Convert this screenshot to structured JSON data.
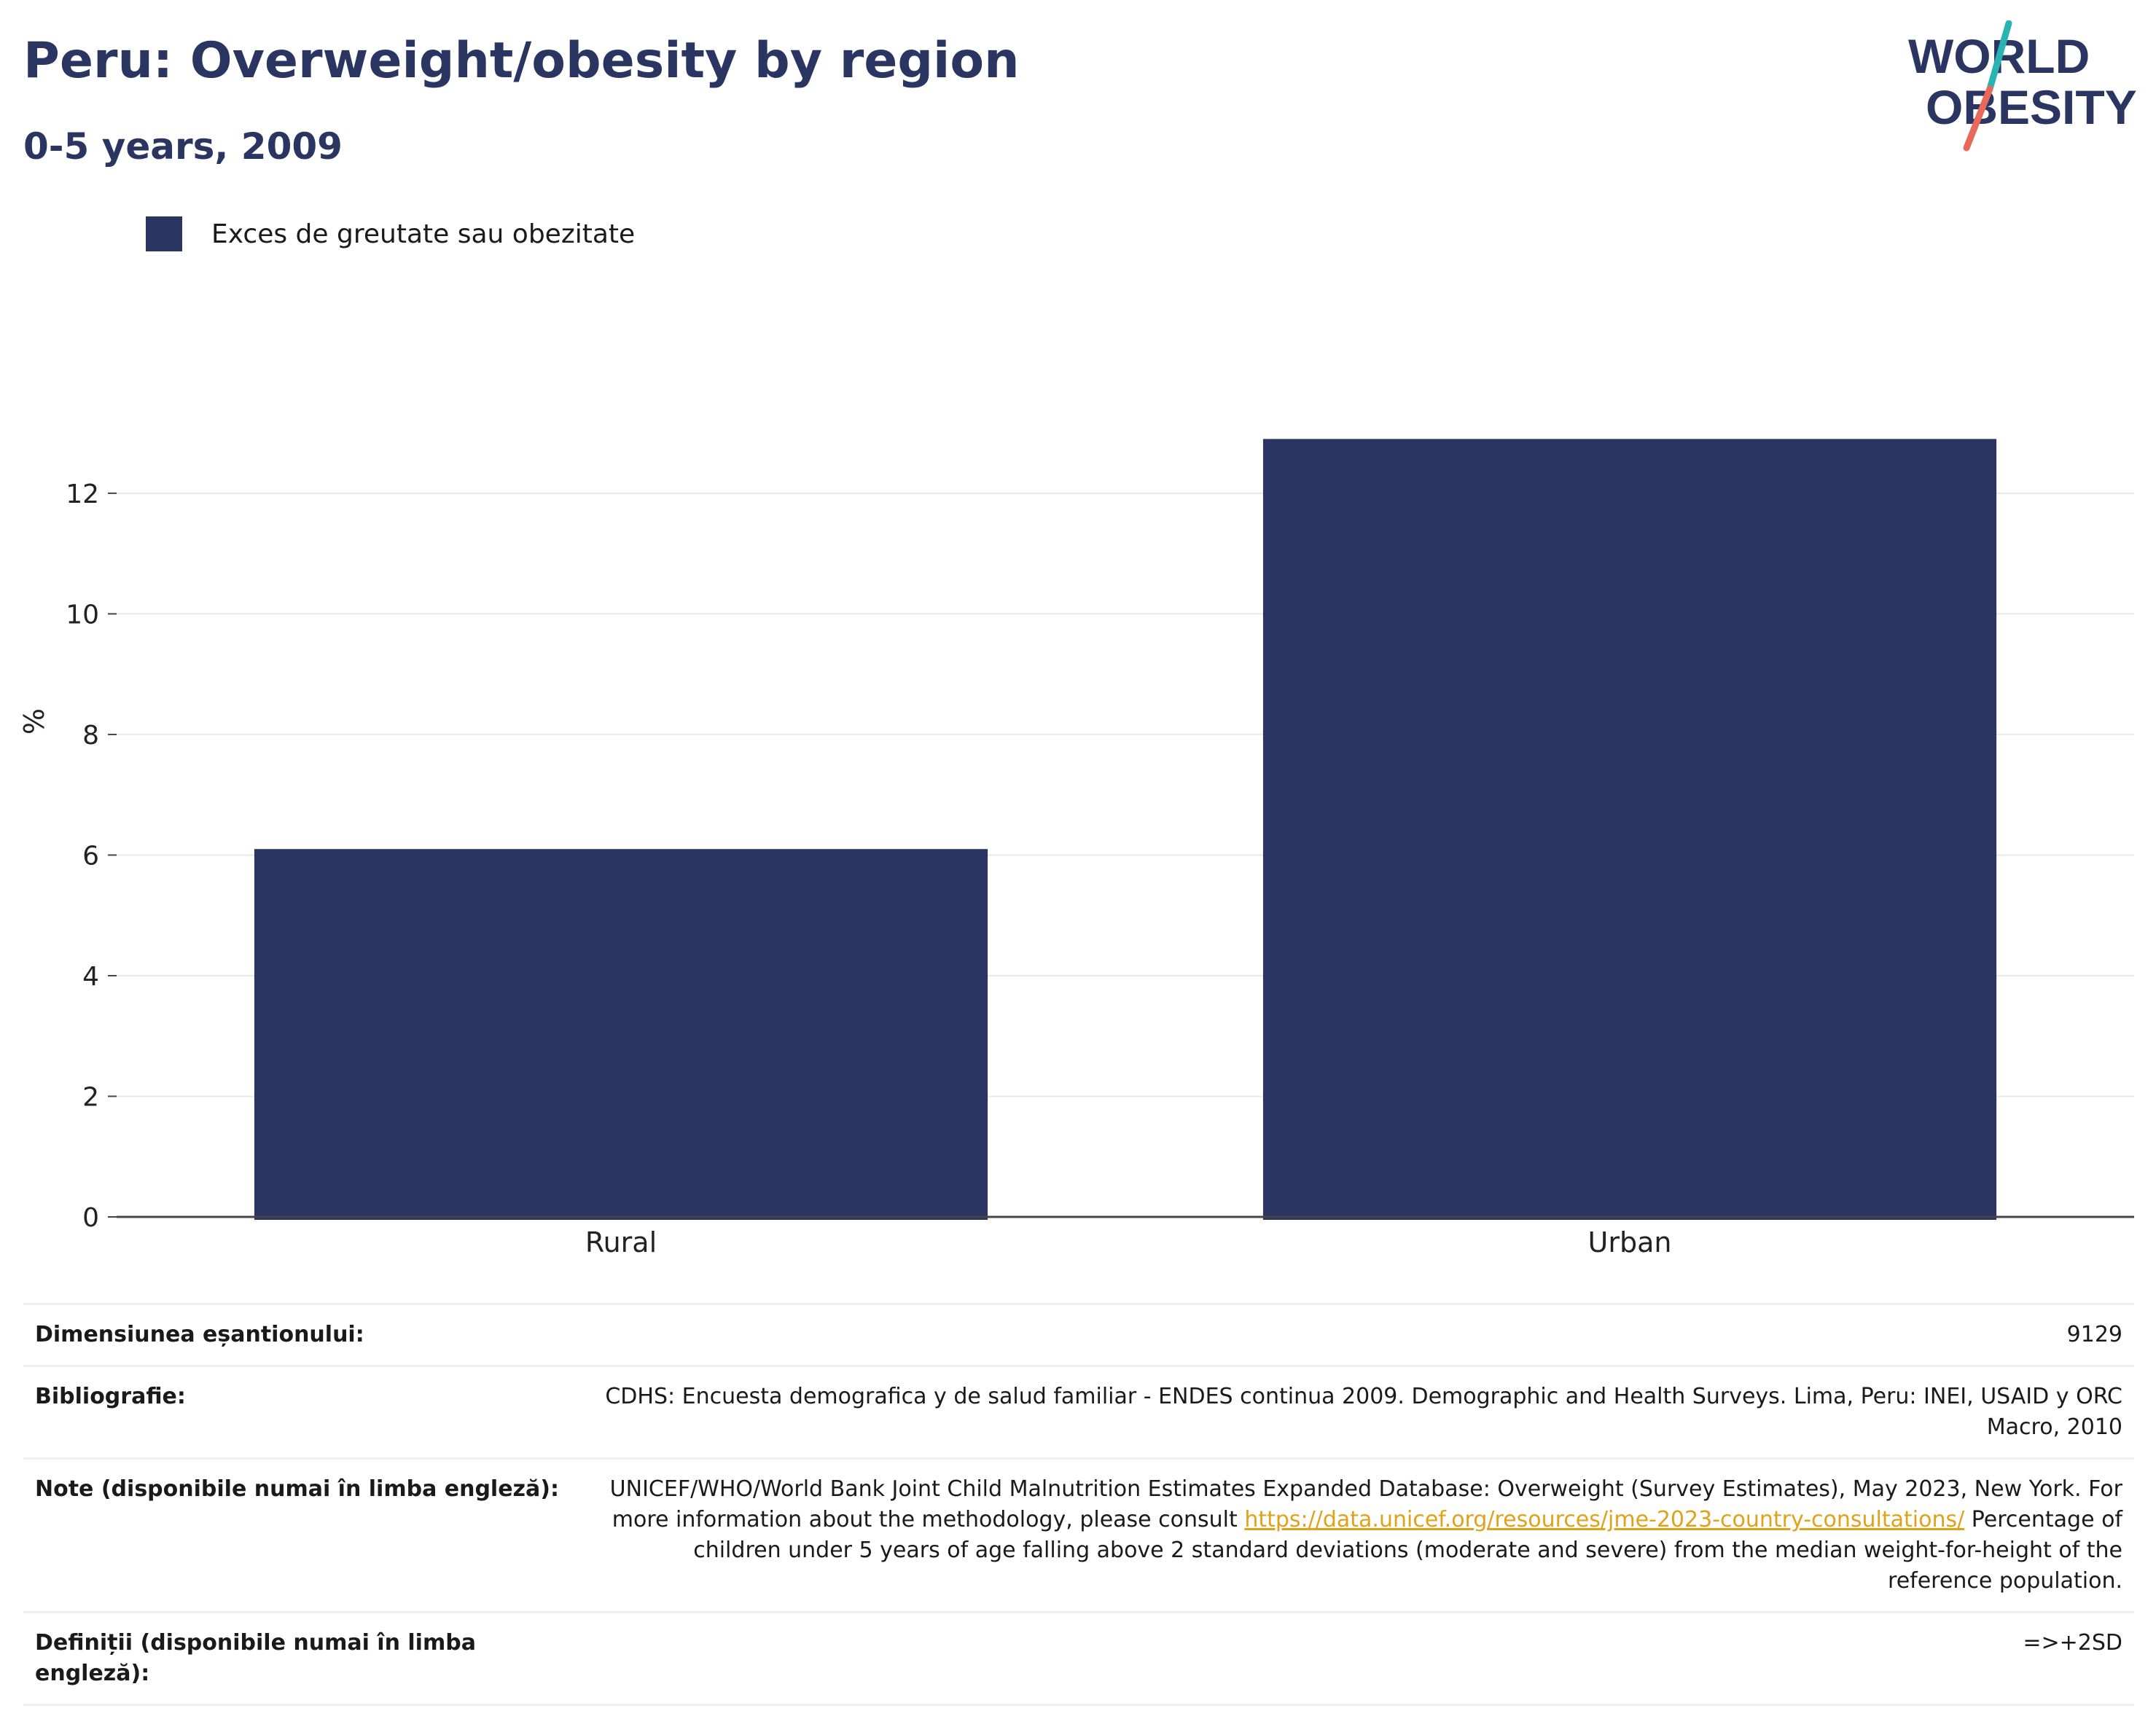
{
  "header": {
    "title": "Peru: Overweight/obesity by region",
    "subtitle": "0-5 years, 2009"
  },
  "logo": {
    "line1": "WORLD",
    "line2": "OBESITY"
  },
  "colors": {
    "bar": "#2a3661",
    "title": "#2a3661",
    "link": "#e0a21a",
    "logo_teal": "#2ab3b1",
    "logo_red": "#e8685a"
  },
  "chart_data": {
    "type": "bar",
    "categories": [
      "Rural",
      "Urban"
    ],
    "series": [
      {
        "name": "Exces de greutate sau obezitate",
        "values": [
          6.1,
          12.9
        ]
      }
    ],
    "ylabel": "%",
    "xlabel": "",
    "ylim": [
      0,
      14.5
    ],
    "yticks": [
      0,
      2,
      4,
      6,
      8,
      10,
      12
    ],
    "grid": true,
    "legend": "top-left"
  },
  "info": {
    "sample_label": "Dimensiunea eșantionului:",
    "sample_value": "9129",
    "bib_label": "Bibliografie:",
    "bib_value": "CDHS: Encuesta demografica y de salud familiar - ENDES continua 2009. Demographic and Health Surveys. Lima, Peru: INEI, USAID y ORC Macro, 2010",
    "notes_label": "Note (disponibile numai în limba engleză):",
    "notes_text1": "UNICEF/WHO/World Bank Joint Child Malnutrition Estimates Expanded Database: Overweight (Survey Estimates), May 2023, New York. For more information about the methodology, please consult",
    "notes_link": "https://data.unicef.org/resources/jme-2023-country-consultations/",
    "notes_text2": "Percentage of children under 5 years of age falling above 2 standard deviations (moderate and severe) from the median weight-for-height of the reference population.",
    "def_label": "Definiții (disponibile numai în limba engleză):",
    "def_value": "=>+2SD"
  }
}
